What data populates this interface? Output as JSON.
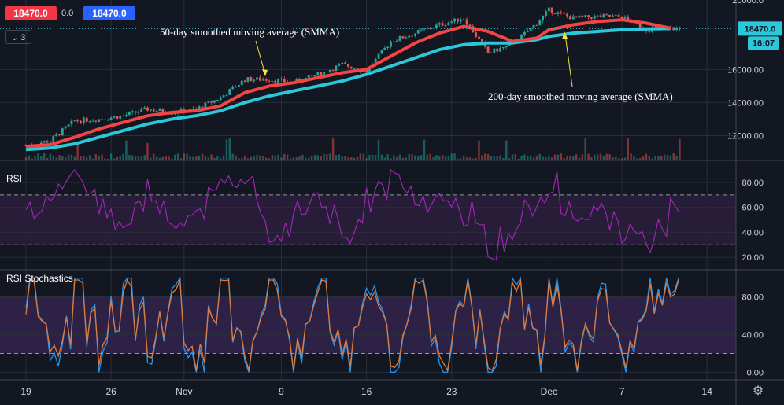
{
  "header": {
    "sell_price": "18470.0",
    "spread": "0.0",
    "buy_price": "18470.0",
    "collapse_label": "⌄ 3"
  },
  "price_axis": {
    "last_price": "18470.0",
    "countdown": "16:07",
    "top_partial_label": "20000.0"
  },
  "colors": {
    "background": "#131722",
    "grid": "#2a2e39",
    "up_candle": "#26a69a",
    "down_candle": "#ef5350",
    "smma50": "#f44545",
    "smma200": "#2cc7d9",
    "rsi_line": "#9c27b0",
    "rsi_band": "#2a1e3b",
    "stoch_k": "#2196f3",
    "stoch_d": "#e07a3a",
    "stoch_band": "#32224a",
    "annotation_text": "#ffffff",
    "annotation_arrow": "#f5e43a",
    "price_badge": "#2962ff",
    "sell": "#f23645"
  },
  "chart_data": [
    {
      "type": "line",
      "panel": "price",
      "title": "",
      "xlabel": "",
      "ylabel": "",
      "x_ticks": [
        "19",
        "26",
        "Nov",
        "9",
        "16",
        "23",
        "Dec",
        "7",
        "14"
      ],
      "y_ticks": [
        12000,
        14000,
        16000
      ],
      "ylim": [
        10500,
        20200
      ],
      "grid": true,
      "annotations": [
        "50-day smoothed moving average (SMMA)",
        "200-day smoothed moving average (SMMA)"
      ],
      "series": [
        {
          "style": "candlestick",
          "x": [
            "Oct 19",
            "Oct 21",
            "Oct 23",
            "Oct 25",
            "Oct 27",
            "Oct 29",
            "Oct 31",
            "Nov 2",
            "Nov 4",
            "Nov 6",
            "Nov 8",
            "Nov 10",
            "Nov 12",
            "Nov 14",
            "Nov 16",
            "Nov 18",
            "Nov 20",
            "Nov 22",
            "Nov 24",
            "Nov 26",
            "Nov 28",
            "Nov 30",
            "Dec 1",
            "Dec 3",
            "Dec 5",
            "Dec 7",
            "Dec 9",
            "Dec 11"
          ],
          "values": [
            11400,
            11700,
            12900,
            13000,
            13200,
            13600,
            13400,
            13600,
            14300,
            15400,
            15400,
            15200,
            15700,
            16300,
            15900,
            17700,
            18200,
            18700,
            19100,
            17000,
            17500,
            18800,
            19600,
            19100,
            19200,
            19200,
            18400,
            18470
          ]
        },
        {
          "name": "50-day smoothed moving average (SMMA)",
          "x": [
            "Oct 19",
            "Oct 21",
            "Oct 23",
            "Oct 25",
            "Oct 27",
            "Oct 29",
            "Oct 31",
            "Nov 2",
            "Nov 4",
            "Nov 6",
            "Nov 8",
            "Nov 10",
            "Nov 12",
            "Nov 14",
            "Nov 16",
            "Nov 18",
            "Nov 20",
            "Nov 22",
            "Nov 24",
            "Nov 26",
            "Nov 28",
            "Nov 30",
            "Dec 1",
            "Dec 3",
            "Dec 5",
            "Dec 7",
            "Dec 9",
            "Dec 11"
          ],
          "values": [
            11350,
            11450,
            11900,
            12400,
            12800,
            13200,
            13400,
            13500,
            13800,
            14600,
            15000,
            15200,
            15500,
            15800,
            16000,
            16800,
            17600,
            18200,
            18600,
            18300,
            17700,
            17900,
            18400,
            18700,
            18900,
            19000,
            18800,
            18500
          ]
        },
        {
          "name": "200-day smoothed moving average (SMMA)",
          "x": [
            "Oct 19",
            "Oct 21",
            "Oct 23",
            "Oct 25",
            "Oct 27",
            "Oct 29",
            "Oct 31",
            "Nov 2",
            "Nov 4",
            "Nov 6",
            "Nov 8",
            "Nov 10",
            "Nov 12",
            "Nov 14",
            "Nov 16",
            "Nov 18",
            "Nov 20",
            "Nov 22",
            "Nov 24",
            "Nov 26",
            "Nov 28",
            "Nov 30",
            "Dec 1",
            "Dec 3",
            "Dec 5",
            "Dec 7",
            "Dec 9",
            "Dec 11"
          ],
          "values": [
            11150,
            11250,
            11500,
            11900,
            12300,
            12700,
            13000,
            13200,
            13500,
            14000,
            14400,
            14700,
            15000,
            15300,
            15700,
            16200,
            16700,
            17200,
            17500,
            17600,
            17600,
            17800,
            18000,
            18200,
            18300,
            18400,
            18450,
            18470
          ]
        }
      ]
    },
    {
      "type": "line",
      "panel": "rsi",
      "title": "RSI",
      "y_ticks": [
        20,
        40,
        60,
        80
      ],
      "ylim": [
        10,
        97
      ],
      "band": [
        30,
        70
      ],
      "series": [
        {
          "x": [
            "Oct 19",
            "Oct 21",
            "Oct 23",
            "Oct 25",
            "Oct 27",
            "Oct 29",
            "Oct 31",
            "Nov 2",
            "Nov 4",
            "Nov 6",
            "Nov 8",
            "Nov 10",
            "Nov 12",
            "Nov 14",
            "Nov 16",
            "Nov 18",
            "Nov 20",
            "Nov 22",
            "Nov 24",
            "Nov 26",
            "Nov 28",
            "Nov 30",
            "Dec 1",
            "Dec 3",
            "Dec 5",
            "Dec 7",
            "Dec 9",
            "Dec 11"
          ],
          "values": [
            55,
            72,
            85,
            60,
            45,
            75,
            40,
            55,
            80,
            85,
            28,
            58,
            70,
            32,
            65,
            85,
            60,
            70,
            55,
            22,
            45,
            68,
            80,
            45,
            60,
            38,
            30,
            62
          ]
        }
      ]
    },
    {
      "type": "line",
      "panel": "stoch_rsi",
      "title": "RSI Stochastics",
      "y_ticks": [
        0,
        40,
        80
      ],
      "ylim": [
        -8,
        108
      ],
      "band": [
        20,
        80
      ],
      "series": [
        {
          "x": [
            "Oct 19",
            "Oct 21",
            "Oct 23",
            "Oct 25",
            "Oct 27",
            "Oct 29",
            "Oct 31",
            "Nov 2",
            "Nov 4",
            "Nov 6",
            "Nov 8",
            "Nov 10",
            "Nov 12",
            "Nov 14",
            "Nov 16",
            "Nov 18",
            "Nov 20",
            "Nov 22",
            "Nov 24",
            "Nov 26",
            "Nov 28",
            "Nov 30",
            "Dec 1",
            "Dec 3",
            "Dec 5",
            "Dec 7",
            "Dec 9",
            "Dec 11"
          ],
          "values": [
            90,
            10,
            95,
            5,
            100,
            20,
            90,
            0,
            95,
            10,
            100,
            5,
            90,
            15,
            100,
            5,
            95,
            10,
            90,
            0,
            100,
            20,
            95,
            5,
            90,
            10,
            85,
            95
          ]
        },
        {
          "x": [
            "Oct 19",
            "Oct 21",
            "Oct 23",
            "Oct 25",
            "Oct 27",
            "Oct 29",
            "Oct 31",
            "Nov 2",
            "Nov 4",
            "Nov 6",
            "Nov 8",
            "Nov 10",
            "Nov 12",
            "Nov 14",
            "Nov 16",
            "Nov 18",
            "Nov 20",
            "Nov 22",
            "Nov 24",
            "Nov 26",
            "Nov 28",
            "Nov 30",
            "Dec 1",
            "Dec 3",
            "Dec 5",
            "Dec 7",
            "Dec 9",
            "Dec 11"
          ],
          "values": [
            80,
            20,
            85,
            15,
            90,
            25,
            85,
            10,
            88,
            15,
            92,
            12,
            85,
            20,
            92,
            12,
            88,
            18,
            85,
            8,
            92,
            25,
            88,
            12,
            85,
            15,
            80,
            90
          ]
        }
      ]
    }
  ]
}
